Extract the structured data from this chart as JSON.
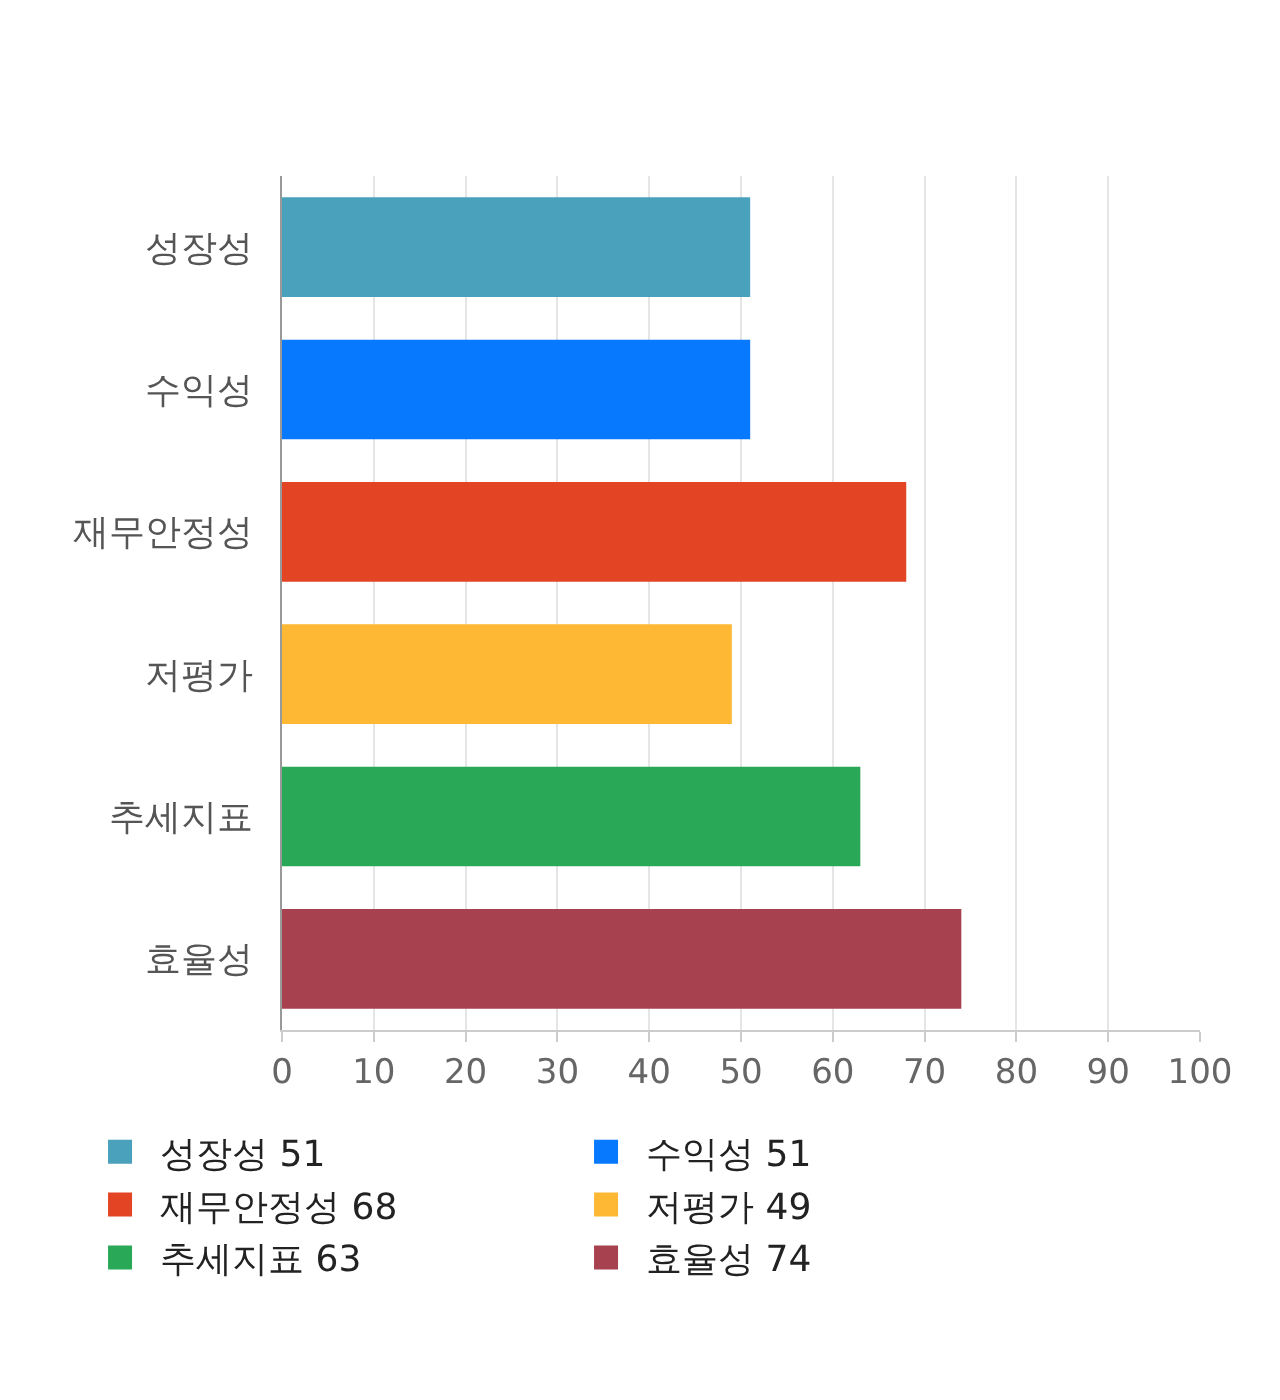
{
  "chart_data": {
    "type": "bar",
    "orientation": "horizontal",
    "categories": [
      "성장성",
      "수익성",
      "재무안정성",
      "저평가",
      "추세지표",
      "효율성"
    ],
    "series": [
      {
        "name": "성장성 51",
        "color": "#4aa1bb",
        "values": [
          51,
          null,
          null,
          null,
          null,
          null
        ]
      },
      {
        "name": "수익성 51",
        "color": "#0779ff",
        "values": [
          null,
          51,
          null,
          null,
          null,
          null
        ]
      },
      {
        "name": "재무안정성 68",
        "color": "#e34524",
        "values": [
          null,
          null,
          68,
          null,
          null,
          null
        ]
      },
      {
        "name": "저평가 49",
        "color": "#ffb833",
        "values": [
          null,
          null,
          null,
          49,
          null,
          null
        ]
      },
      {
        "name": "추세지표 63",
        "color": "#29a858",
        "values": [
          null,
          null,
          null,
          null,
          63,
          null
        ]
      },
      {
        "name": "효율성 74",
        "color": "#a8414f",
        "values": [
          null,
          null,
          null,
          null,
          null,
          74
        ]
      }
    ],
    "xlim": [
      0,
      100
    ],
    "xticks": [
      0,
      10,
      20,
      30,
      40,
      50,
      60,
      70,
      80,
      90,
      100
    ],
    "grid": "x",
    "legend": "bottom"
  }
}
